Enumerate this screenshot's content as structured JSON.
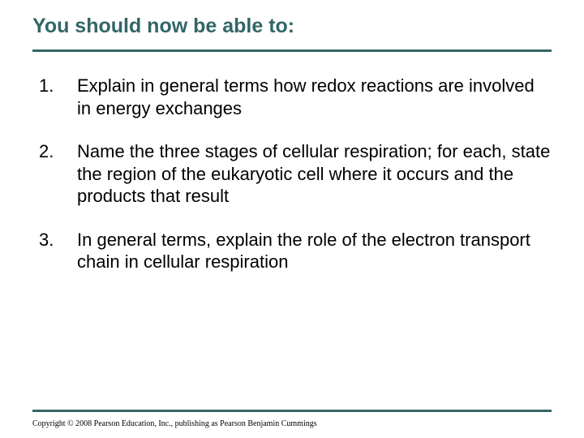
{
  "title": "You should now be able to:",
  "title_color": "#336666",
  "title_fontsize": 25,
  "rule_color": "#336666",
  "rule_thickness": 3,
  "body_fontsize": 22,
  "body_color": "#000000",
  "background_color": "#ffffff",
  "items": [
    "Explain in general terms how redox reactions are involved in energy exchanges",
    "Name the three stages of cellular respiration; for each, state the region of the eukaryotic cell where it occurs and the products that result",
    "In general terms, explain the role of the electron transport chain in cellular respiration"
  ],
  "copyright": "Copyright © 2008 Pearson Education, Inc., publishing as Pearson Benjamin Cummings",
  "copyright_fontsize": 10
}
